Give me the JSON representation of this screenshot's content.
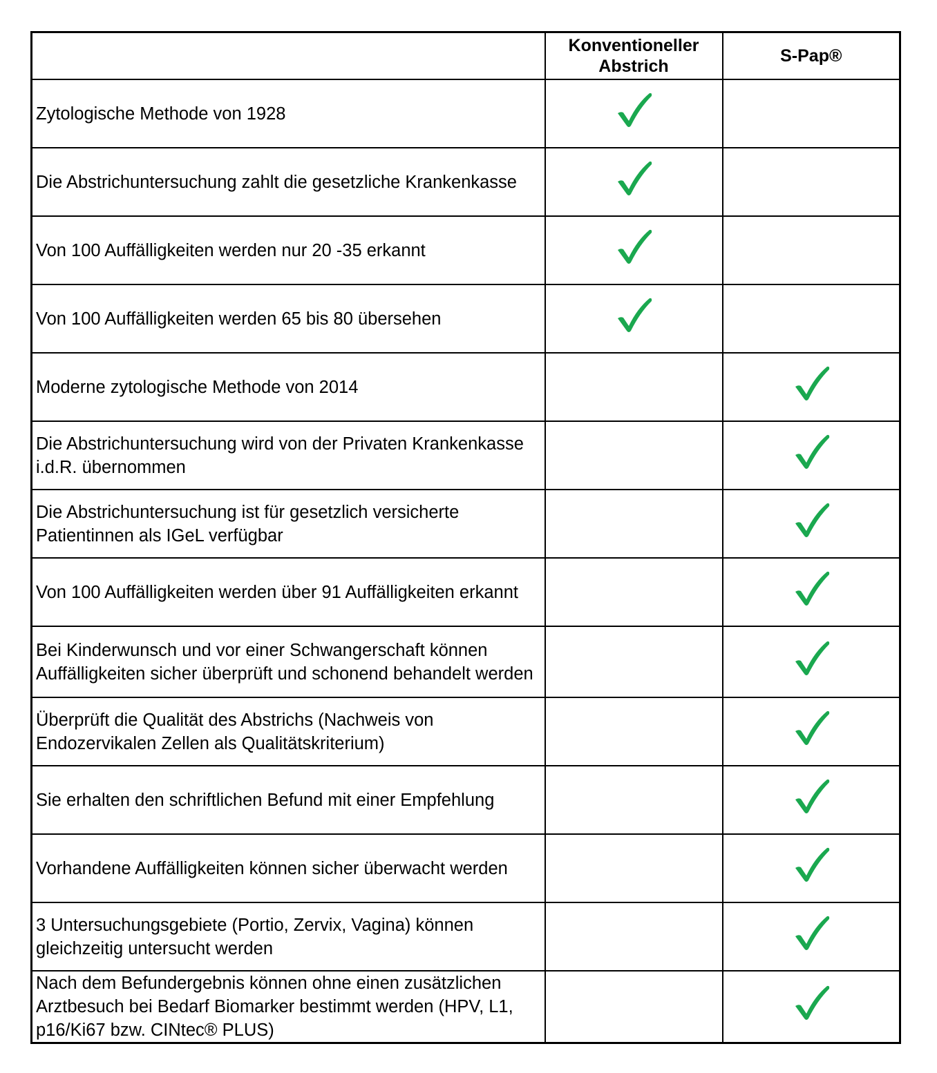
{
  "header": {
    "corner": "",
    "col1": "Konventioneller Abstrich",
    "col2": "S-Pap®"
  },
  "check_color": "#1aa84f",
  "check_icon": "checkmark-icon",
  "rows": [
    {
      "label": "Zytologische Methode von 1928",
      "konventionell": true,
      "spap": false
    },
    {
      "label": "Die Abstrichuntersuchung zahlt die gesetzliche Krankenkasse",
      "konventionell": true,
      "spap": false
    },
    {
      "label": "Von 100 Auffälligkeiten werden nur 20 -35 erkannt",
      "konventionell": true,
      "spap": false
    },
    {
      "label": "Von 100 Auffälligkeiten werden 65 bis 80 übersehen",
      "konventionell": true,
      "spap": false
    },
    {
      "label": "Moderne zytologische Methode von 2014",
      "konventionell": false,
      "spap": true
    },
    {
      "label": "Die Abstrichuntersuchung wird von der Privaten Krankenkasse i.d.R. übernommen",
      "konventionell": false,
      "spap": true
    },
    {
      "label": "Die Abstrichuntersuchung ist für gesetzlich versicherte Patientinnen als IGeL verfügbar",
      "konventionell": false,
      "spap": true
    },
    {
      "label": "Von 100 Auffälligkeiten werden über 91 Auffälligkeiten erkannt",
      "konventionell": false,
      "spap": true
    },
    {
      "label": "Bei Kinderwunsch und vor einer Schwangerschaft können Auffälligkeiten sicher überprüft und schonend behandelt werden",
      "konventionell": false,
      "spap": true
    },
    {
      "label": "Überprüft die Qualität des Abstrichs (Nachweis von Endozervikalen Zellen als Qualitätskriterium)",
      "konventionell": false,
      "spap": true
    },
    {
      "label": "Sie erhalten den schriftlichen Befund mit einer Empfehlung",
      "konventionell": false,
      "spap": true
    },
    {
      "label": "Vorhandene Auffälligkeiten können sicher überwacht werden",
      "konventionell": false,
      "spap": true
    },
    {
      "label": "3 Untersuchungsgebiete (Portio, Zervix, Vagina) können gleichzeitig untersucht werden",
      "konventionell": false,
      "spap": true
    },
    {
      "label": "Nach dem Befundergebnis können ohne einen zusätzlichen Arztbesuch bei Bedarf Biomarker bestimmt werden (HPV, L1, p16/Ki67 bzw. CINtec® PLUS)",
      "konventionell": false,
      "spap": true
    }
  ]
}
